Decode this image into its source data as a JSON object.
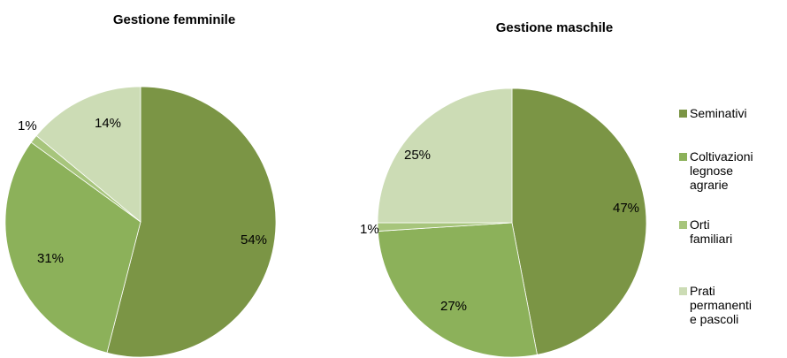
{
  "chart_data": [
    {
      "type": "pie",
      "title": "Gestione femminile",
      "slices": [
        {
          "name": "Seminativi",
          "value": 54,
          "label": "54%"
        },
        {
          "name": "Coltivazioni legnose agrarie",
          "value": 31,
          "label": "31%"
        },
        {
          "name": "Orti familiari",
          "value": 1,
          "label": "1%"
        },
        {
          "name": "Prati permanenti e pascoli",
          "value": 14,
          "label": "14%"
        }
      ]
    },
    {
      "type": "pie",
      "title": "Gestione maschile",
      "slices": [
        {
          "name": "Seminativi",
          "value": 47,
          "label": "47%"
        },
        {
          "name": "Coltivazioni legnose agrarie",
          "value": 27,
          "label": "27%"
        },
        {
          "name": "Orti familiari",
          "value": 1,
          "label": "1%"
        },
        {
          "name": "Prati permanenti e pascoli",
          "value": 25,
          "label": "25%"
        }
      ]
    }
  ],
  "legend": {
    "placement": "right",
    "items": [
      {
        "label": "Seminativi",
        "color": "#7b9545"
      },
      {
        "label": "Coltivazioni\nlegnose\nagrarie",
        "color": "#8cb15a"
      },
      {
        "label": "Orti\nfamiliari",
        "color": "#a7c57c"
      },
      {
        "label": "Prati\npermanenti\ne pascoli",
        "color": "#ccdcb5"
      }
    ]
  },
  "colors": [
    "#7b9545",
    "#8cb15a",
    "#a7c57c",
    "#ccdcb5"
  ]
}
